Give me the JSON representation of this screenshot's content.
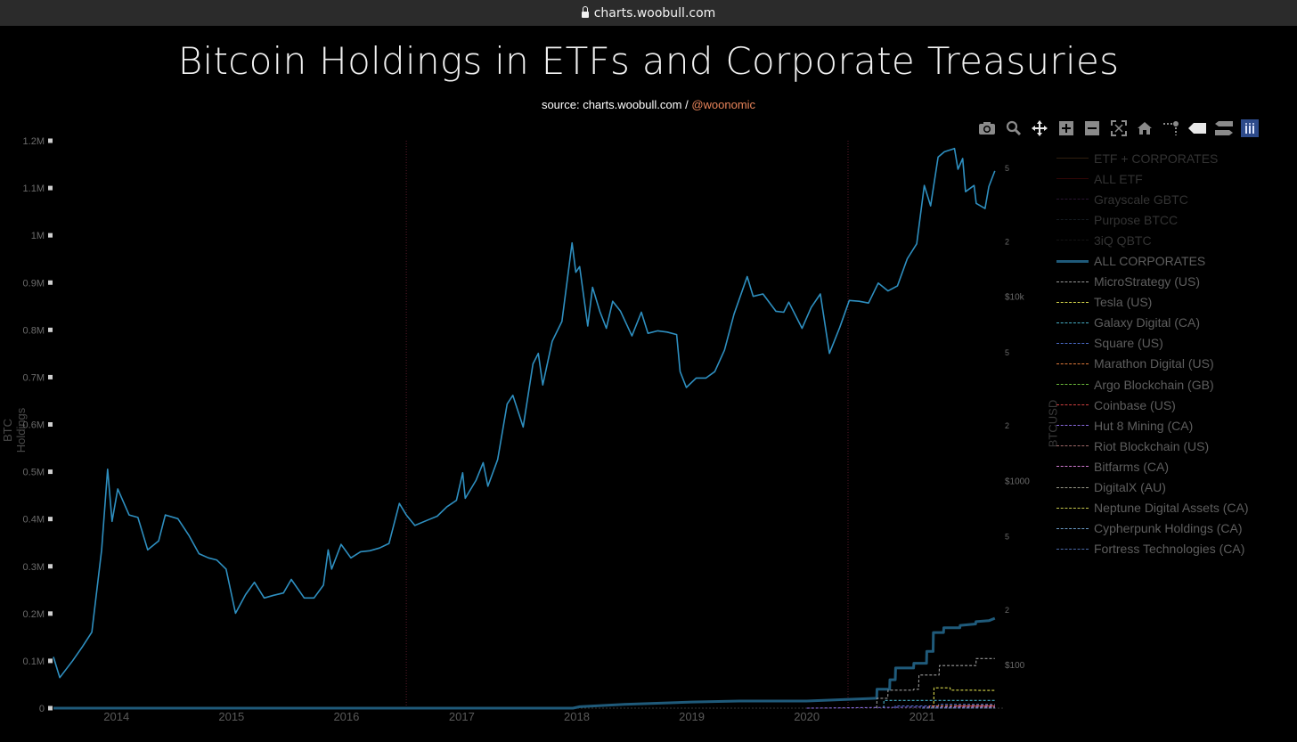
{
  "browser": {
    "url": "charts.woobull.com"
  },
  "header": {
    "title": "Bitcoin Holdings in ETFs and Corporate Treasuries",
    "source_prefix": "source: charts.woobull.com / ",
    "source_handle": "@woonomic"
  },
  "toolbar": {
    "icons": [
      "camera-icon",
      "zoom-icon",
      "pan-icon",
      "zoom-in-icon",
      "zoom-out-icon",
      "autoscale-icon",
      "home-icon",
      "spike-lines-icon",
      "hover-closest-icon",
      "hover-compare-icon",
      "plotly-logo-icon"
    ]
  },
  "colors": {
    "background": "#000000",
    "price_line": "#2e8fc0",
    "all_corporates": "#1f5a7a",
    "event_line": "#5a1a2a"
  },
  "chart_data": {
    "type": "line",
    "title": "Bitcoin Holdings in ETFs and Corporate Treasuries",
    "ylabel": "BTC Holdings",
    "y2label": "BTCUSD",
    "x_tick_labels": [
      "2014",
      "2015",
      "2016",
      "2017",
      "2018",
      "2019",
      "2020",
      "2021"
    ],
    "xlim": [
      "2013-06-15",
      "2021-09-15"
    ],
    "ylim": [
      0,
      1200000
    ],
    "y_tick_labels": [
      "0",
      "0.1M",
      "0.2M",
      "0.3M",
      "0.4M",
      "0.5M",
      "0.6M",
      "0.7M",
      "0.8M",
      "0.9M",
      "1M",
      "1.1M",
      "1.2M"
    ],
    "y2_scale": "log",
    "y2_tick_labels": [
      "$100",
      "2",
      "5",
      "$1000",
      "2",
      "5",
      "$10k",
      "2",
      "5",
      "2",
      "5"
    ],
    "event_lines": [
      "2016-07-09",
      "2020-05-11"
    ],
    "grid": false,
    "legend_position": "right",
    "series": [
      {
        "name": "ETF + CORPORATES",
        "color": "#8a5a2a",
        "dash": "solid",
        "visible": false
      },
      {
        "name": "ALL ETF",
        "color": "#8a1010",
        "dash": "solid",
        "visible": false
      },
      {
        "name": "Grayscale GBTC",
        "color": "#7a3a8a",
        "dash": "dash",
        "visible": false
      },
      {
        "name": "Purpose BTCC",
        "color": "#3a4a5a",
        "dash": "dash",
        "visible": false
      },
      {
        "name": "3iQ QBTC",
        "color": "#3a3a3a",
        "dash": "dash",
        "visible": false
      },
      {
        "name": "ALL CORPORATES",
        "color": "#1f5a7a",
        "dash": "solid",
        "visible": true,
        "points": [
          [
            "2013-06-15",
            0
          ],
          [
            "2017-12-20",
            0
          ],
          [
            "2018-01-10",
            3000
          ],
          [
            "2018-06-01",
            8000
          ],
          [
            "2019-01-01",
            13000
          ],
          [
            "2019-06-01",
            15000
          ],
          [
            "2020-01-01",
            15000
          ],
          [
            "2020-06-01",
            19000
          ],
          [
            "2020-08-10",
            21000
          ],
          [
            "2020-08-11",
            40000
          ],
          [
            "2020-09-20",
            40000
          ],
          [
            "2020-09-21",
            60000
          ],
          [
            "2020-10-08",
            60000
          ],
          [
            "2020-10-09",
            85000
          ],
          [
            "2020-12-05",
            85000
          ],
          [
            "2020-12-06",
            95000
          ],
          [
            "2021-01-15",
            95000
          ],
          [
            "2021-01-16",
            120000
          ],
          [
            "2021-02-05",
            120000
          ],
          [
            "2021-02-06",
            160000
          ],
          [
            "2021-03-10",
            160000
          ],
          [
            "2021-03-11",
            170000
          ],
          [
            "2021-05-01",
            170000
          ],
          [
            "2021-05-02",
            175000
          ],
          [
            "2021-06-20",
            178000
          ],
          [
            "2021-06-21",
            183000
          ],
          [
            "2021-08-01",
            185000
          ],
          [
            "2021-08-20",
            190000
          ]
        ]
      },
      {
        "name": "MicroStrategy (US)",
        "color": "#9a9a9a",
        "dash": "dash",
        "visible": true,
        "points": [
          [
            "2020-08-10",
            0
          ],
          [
            "2020-08-11",
            21000
          ],
          [
            "2020-09-14",
            21000
          ],
          [
            "2020-09-15",
            38000
          ],
          [
            "2020-12-04",
            38000
          ],
          [
            "2020-12-05",
            40000
          ],
          [
            "2020-12-21",
            40000
          ],
          [
            "2020-12-22",
            70000
          ],
          [
            "2021-02-24",
            70000
          ],
          [
            "2021-02-25",
            90000
          ],
          [
            "2021-06-21",
            90000
          ],
          [
            "2021-06-22",
            105000
          ],
          [
            "2021-08-20",
            105000
          ]
        ]
      },
      {
        "name": "Tesla (US)",
        "color": "#d6d64a",
        "dash": "dash",
        "visible": true,
        "points": [
          [
            "2021-02-07",
            0
          ],
          [
            "2021-02-08",
            43000
          ],
          [
            "2021-03-31",
            43000
          ],
          [
            "2021-04-01",
            38000
          ],
          [
            "2021-06-21",
            38000
          ],
          [
            "2021-06-22",
            37500
          ],
          [
            "2021-08-20",
            37500
          ]
        ]
      },
      {
        "name": "Galaxy Digital (CA)",
        "color": "#46b0c8",
        "dash": "dash",
        "visible": true,
        "points": [
          [
            "2020-09-01",
            0
          ],
          [
            "2020-09-02",
            16400
          ],
          [
            "2021-08-20",
            16400
          ]
        ]
      },
      {
        "name": "Square (US)",
        "color": "#4a6ac8",
        "dash": "dash",
        "visible": true,
        "points": [
          [
            "2020-10-07",
            0
          ],
          [
            "2020-10-08",
            4700
          ],
          [
            "2021-02-22",
            4700
          ],
          [
            "2021-02-23",
            8000
          ],
          [
            "2021-08-20",
            8000
          ]
        ]
      },
      {
        "name": "Marathon Digital (US)",
        "color": "#e07a3a",
        "dash": "dash",
        "visible": true,
        "points": [
          [
            "2021-01-24",
            0
          ],
          [
            "2021-01-25",
            4800
          ],
          [
            "2021-08-20",
            5800
          ]
        ]
      },
      {
        "name": "Argo Blockchain (GB)",
        "color": "#6ab83a",
        "dash": "dash",
        "visible": true,
        "points": [
          [
            "2021-01-01",
            0
          ],
          [
            "2021-08-20",
            1200
          ]
        ]
      },
      {
        "name": "Coinbase (US)",
        "color": "#d04040",
        "dash": "dash",
        "visible": true,
        "points": [
          [
            "2021-04-13",
            0
          ],
          [
            "2021-04-14",
            4500
          ],
          [
            "2021-08-20",
            4500
          ]
        ]
      },
      {
        "name": "Hut 8 Mining (CA)",
        "color": "#8a6ae0",
        "dash": "dash",
        "visible": true,
        "points": [
          [
            "2020-01-01",
            0
          ],
          [
            "2021-08-20",
            3500
          ]
        ]
      },
      {
        "name": "Riot Blockchain (US)",
        "color": "#a06a6a",
        "dash": "dash",
        "visible": true,
        "points": [
          [
            "2021-01-01",
            0
          ],
          [
            "2021-08-20",
            2000
          ]
        ]
      },
      {
        "name": "Bitfarms (CA)",
        "color": "#d07ad0",
        "dash": "dash",
        "visible": true,
        "points": [
          [
            "2021-01-01",
            0
          ],
          [
            "2021-08-20",
            1500
          ]
        ]
      },
      {
        "name": "DigitalX (AU)",
        "color": "#9a9a8a",
        "dash": "dash",
        "visible": true,
        "points": [
          [
            "2021-01-01",
            0
          ],
          [
            "2021-08-20",
            300
          ]
        ]
      },
      {
        "name": "Neptune Digital Assets (CA)",
        "color": "#c8c84a",
        "dash": "dash",
        "visible": true,
        "points": [
          [
            "2021-01-01",
            0
          ],
          [
            "2021-08-20",
            300
          ]
        ]
      },
      {
        "name": "Cypherpunk Holdings (CA)",
        "color": "#6a9ac8",
        "dash": "dash",
        "visible": true,
        "points": [
          [
            "2021-01-01",
            0
          ],
          [
            "2021-08-20",
            200
          ]
        ]
      },
      {
        "name": "Fortress Technologies (CA)",
        "color": "#4a6aa8",
        "dash": "dash",
        "visible": true,
        "points": [
          [
            "2021-01-01",
            0
          ],
          [
            "2021-08-20",
            200
          ]
        ]
      },
      {
        "name": "BTCUSD",
        "color": "#2e8fc0",
        "axis": "y2",
        "points": [
          [
            "2013-06-15",
            110
          ],
          [
            "2013-07-05",
            85
          ],
          [
            "2013-08-15",
            105
          ],
          [
            "2013-09-15",
            125
          ],
          [
            "2013-10-15",
            150
          ],
          [
            "2013-11-15",
            420
          ],
          [
            "2013-12-04",
            1150
          ],
          [
            "2013-12-18",
            600
          ],
          [
            "2014-01-05",
            900
          ],
          [
            "2014-02-10",
            650
          ],
          [
            "2014-03-10",
            630
          ],
          [
            "2014-04-10",
            420
          ],
          [
            "2014-05-15",
            470
          ],
          [
            "2014-06-05",
            650
          ],
          [
            "2014-07-15",
            620
          ],
          [
            "2014-08-20",
            500
          ],
          [
            "2014-09-20",
            400
          ],
          [
            "2014-10-20",
            380
          ],
          [
            "2014-11-15",
            370
          ],
          [
            "2014-12-15",
            330
          ],
          [
            "2015-01-14",
            190
          ],
          [
            "2015-02-15",
            240
          ],
          [
            "2015-03-15",
            280
          ],
          [
            "2015-04-15",
            230
          ],
          [
            "2015-05-15",
            238
          ],
          [
            "2015-06-15",
            245
          ],
          [
            "2015-07-10",
            290
          ],
          [
            "2015-08-20",
            230
          ],
          [
            "2015-09-20",
            230
          ],
          [
            "2015-10-20",
            270
          ],
          [
            "2015-11-04",
            420
          ],
          [
            "2015-11-15",
            330
          ],
          [
            "2015-12-15",
            450
          ],
          [
            "2016-01-15",
            380
          ],
          [
            "2016-02-15",
            410
          ],
          [
            "2016-03-15",
            415
          ],
          [
            "2016-04-15",
            430
          ],
          [
            "2016-05-15",
            455
          ],
          [
            "2016-06-17",
            750
          ],
          [
            "2016-07-09",
            650
          ],
          [
            "2016-08-05",
            570
          ],
          [
            "2016-09-15",
            610
          ],
          [
            "2016-10-15",
            640
          ],
          [
            "2016-11-15",
            720
          ],
          [
            "2016-12-15",
            780
          ],
          [
            "2017-01-04",
            1100
          ],
          [
            "2017-01-12",
            800
          ],
          [
            "2017-02-15",
            1000
          ],
          [
            "2017-03-10",
            1250
          ],
          [
            "2017-03-25",
            930
          ],
          [
            "2017-04-25",
            1300
          ],
          [
            "2017-05-25",
            2600
          ],
          [
            "2017-06-12",
            2900
          ],
          [
            "2017-07-15",
            1950
          ],
          [
            "2017-08-15",
            4300
          ],
          [
            "2017-09-01",
            4900
          ],
          [
            "2017-09-15",
            3300
          ],
          [
            "2017-10-15",
            5700
          ],
          [
            "2017-11-15",
            7300
          ],
          [
            "2017-12-17",
            19500
          ],
          [
            "2017-12-29",
            13500
          ],
          [
            "2018-01-10",
            14500
          ],
          [
            "2018-02-05",
            6900
          ],
          [
            "2018-02-20",
            11200
          ],
          [
            "2018-03-15",
            8300
          ],
          [
            "2018-04-05",
            6700
          ],
          [
            "2018-04-25",
            9400
          ],
          [
            "2018-05-20",
            8300
          ],
          [
            "2018-06-25",
            6100
          ],
          [
            "2018-07-25",
            8200
          ],
          [
            "2018-08-15",
            6300
          ],
          [
            "2018-09-15",
            6500
          ],
          [
            "2018-10-15",
            6400
          ],
          [
            "2018-11-14",
            6200
          ],
          [
            "2018-11-25",
            3900
          ],
          [
            "2018-12-15",
            3200
          ],
          [
            "2019-01-15",
            3600
          ],
          [
            "2019-02-15",
            3600
          ],
          [
            "2019-03-15",
            3900
          ],
          [
            "2019-04-15",
            5100
          ],
          [
            "2019-05-15",
            8000
          ],
          [
            "2019-06-26",
            12800
          ],
          [
            "2019-07-15",
            10000
          ],
          [
            "2019-08-15",
            10300
          ],
          [
            "2019-09-25",
            8300
          ],
          [
            "2019-10-20",
            8200
          ],
          [
            "2019-11-05",
            9300
          ],
          [
            "2019-12-17",
            6700
          ],
          [
            "2020-01-15",
            8700
          ],
          [
            "2020-02-13",
            10300
          ],
          [
            "2020-03-13",
            4900
          ],
          [
            "2020-04-15",
            6800
          ],
          [
            "2020-05-15",
            9500
          ],
          [
            "2020-06-15",
            9400
          ],
          [
            "2020-07-15",
            9200
          ],
          [
            "2020-08-15",
            11800
          ],
          [
            "2020-09-15",
            10700
          ],
          [
            "2020-10-15",
            11400
          ],
          [
            "2020-11-15",
            16000
          ],
          [
            "2020-12-15",
            19300
          ],
          [
            "2021-01-08",
            40000
          ],
          [
            "2021-01-28",
            31000
          ],
          [
            "2021-02-21",
            57000
          ],
          [
            "2021-03-13",
            61000
          ],
          [
            "2021-04-14",
            63500
          ],
          [
            "2021-04-25",
            49000
          ],
          [
            "2021-05-10",
            56000
          ],
          [
            "2021-05-19",
            37000
          ],
          [
            "2021-06-15",
            40000
          ],
          [
            "2021-06-22",
            32000
          ],
          [
            "2021-07-20",
            30000
          ],
          [
            "2021-08-01",
            39500
          ],
          [
            "2021-08-20",
            48000
          ]
        ]
      }
    ]
  }
}
